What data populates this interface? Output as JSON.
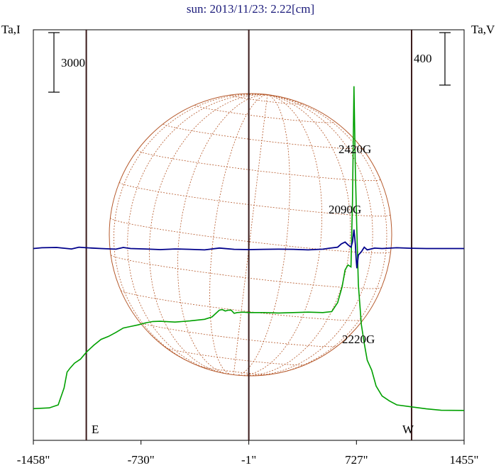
{
  "chart_data": {
    "type": "line",
    "title": "sun: 2013/11/23: 2.22[cm]",
    "left_axis_label": "Ta,I",
    "right_axis_label": "Ta,V",
    "left_scale_bar_label": "3000",
    "right_scale_bar_label": "400",
    "x_ticks": [
      {
        "value": -1458,
        "label": "-1458\""
      },
      {
        "value": -730,
        "label": "-730\""
      },
      {
        "value": -1,
        "label": "-1\""
      },
      {
        "value": 727,
        "label": "727\""
      },
      {
        "value": 1455,
        "label": "1455\""
      }
    ],
    "xlim": [
      -1458,
      1455
    ],
    "limb_markers": {
      "east": "E",
      "west": "W"
    },
    "annotations": [
      "2420G",
      "2090G",
      "2220G"
    ],
    "colors": {
      "title": "#1a1a7a",
      "intensity": "#00a000",
      "polarization": "#00008b",
      "grid_lines": "#3a1a1a",
      "solar_disk": "#b5582a"
    },
    "series": [
      {
        "name": "Ta,I",
        "color": "#00a000",
        "x": [
          -1458,
          -1350,
          -1290,
          -1250,
          -1230,
          -1210,
          -1180,
          -1140,
          -1100,
          -1050,
          -1000,
          -950,
          -900,
          -850,
          -800,
          -750,
          -700,
          -650,
          -600,
          -500,
          -400,
          -300,
          -250,
          -200,
          -180,
          -160,
          -140,
          -120,
          -100,
          -80,
          -40,
          0,
          100,
          200,
          300,
          400,
          500,
          560,
          600,
          630,
          650,
          670,
          690,
          700,
          710,
          720,
          730,
          740,
          750,
          760,
          780,
          800,
          830,
          860,
          900,
          950,
          1000,
          1100,
          1200,
          1300,
          1455
        ],
        "values": [
          560,
          600,
          750,
          1600,
          2400,
          2600,
          2850,
          3050,
          3400,
          3750,
          4050,
          4200,
          4400,
          4620,
          4700,
          4780,
          4880,
          4950,
          4960,
          4920,
          4980,
          5060,
          5180,
          5520,
          5550,
          5480,
          5520,
          5520,
          5360,
          5400,
          5420,
          5400,
          5400,
          5380,
          5400,
          5420,
          5400,
          5450,
          5900,
          6700,
          7550,
          7800,
          7700,
          11000,
          16800,
          12500,
          9500,
          6800,
          5800,
          4800,
          3850,
          3000,
          2500,
          1700,
          1200,
          950,
          750,
          650,
          550,
          480,
          470
        ]
      },
      {
        "name": "Ta,V",
        "color": "#00008b",
        "x": [
          -1458,
          -1400,
          -1300,
          -1200,
          -1150,
          -1100,
          -1000,
          -900,
          -850,
          -800,
          -700,
          -600,
          -500,
          -400,
          -300,
          -200,
          -100,
          0,
          100,
          200,
          300,
          400,
          500,
          550,
          600,
          625,
          650,
          670,
          690,
          700,
          710,
          720,
          725,
          730,
          740,
          760,
          780,
          800,
          850,
          900,
          1000,
          1100,
          1200,
          1300,
          1455
        ],
        "values": [
          0,
          6,
          8,
          -3,
          10,
          6,
          0,
          -5,
          8,
          0,
          -3,
          -8,
          -3,
          -6,
          -10,
          4,
          -6,
          -8,
          -6,
          -5,
          -6,
          -10,
          -5,
          3,
          10,
          35,
          50,
          28,
          10,
          50,
          145,
          30,
          -80,
          -150,
          -50,
          -25,
          10,
          -10,
          3,
          0,
          6,
          2,
          0,
          0,
          0
        ]
      }
    ]
  }
}
